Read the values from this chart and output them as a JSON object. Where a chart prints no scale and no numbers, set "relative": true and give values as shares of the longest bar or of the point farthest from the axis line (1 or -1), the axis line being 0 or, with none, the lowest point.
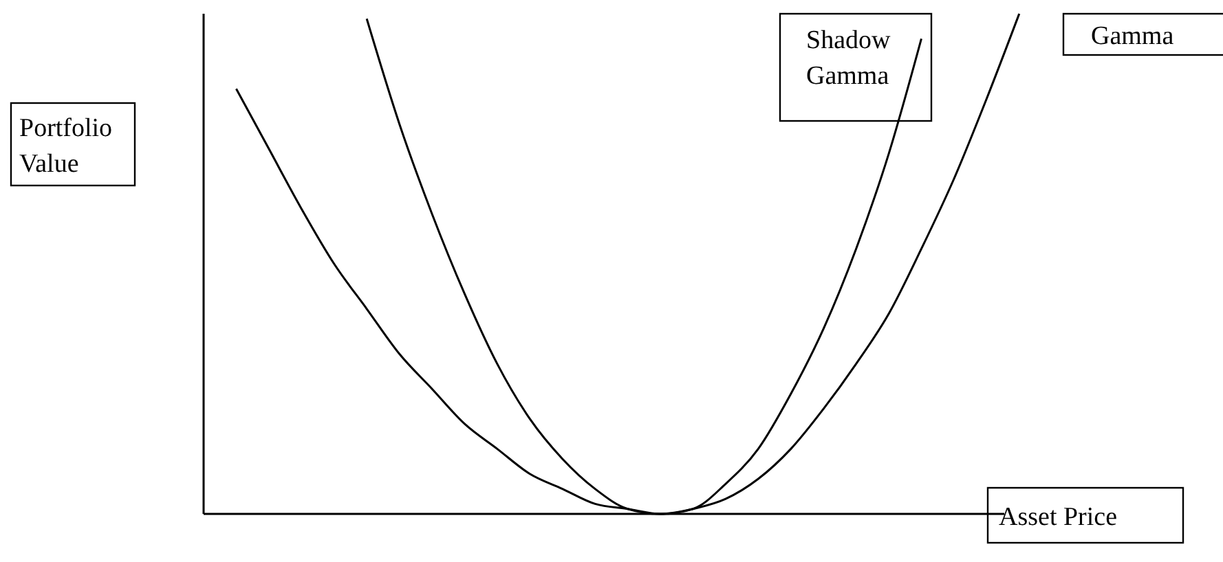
{
  "chart_data": {
    "type": "line",
    "relative": true,
    "xlabel": "Asset Price",
    "ylabel": "Portfolio Value",
    "categories": [
      null,
      null,
      null,
      null,
      null,
      null,
      null,
      null,
      null,
      null,
      null,
      null,
      null,
      null,
      null,
      null,
      null,
      null,
      null,
      null,
      null,
      null,
      null,
      null,
      null,
      null,
      null
    ],
    "series": [
      {
        "name": "Gamma",
        "color": "#000000",
        "values": [
          null,
          0.85,
          0.73,
          0.61,
          0.5,
          0.41,
          0.32,
          0.25,
          0.18,
          0.13,
          0.08,
          0.05,
          0.02,
          0.01,
          0,
          0.01,
          0.03,
          0.07,
          0.13,
          0.21,
          0.3,
          0.4,
          0.53,
          0.67,
          0.83,
          1,
          null
        ]
      },
      {
        "name": "Shadow Gamma",
        "color": "#000000",
        "values": [
          null,
          null,
          null,
          null,
          null,
          0.99,
          0.78,
          0.6,
          0.44,
          0.3,
          0.19,
          0.11,
          0.05,
          0.01,
          0,
          0.01,
          0.06,
          0.13,
          0.24,
          0.37,
          0.53,
          0.72,
          0.95,
          null,
          null,
          null,
          null
        ]
      }
    ]
  }
}
